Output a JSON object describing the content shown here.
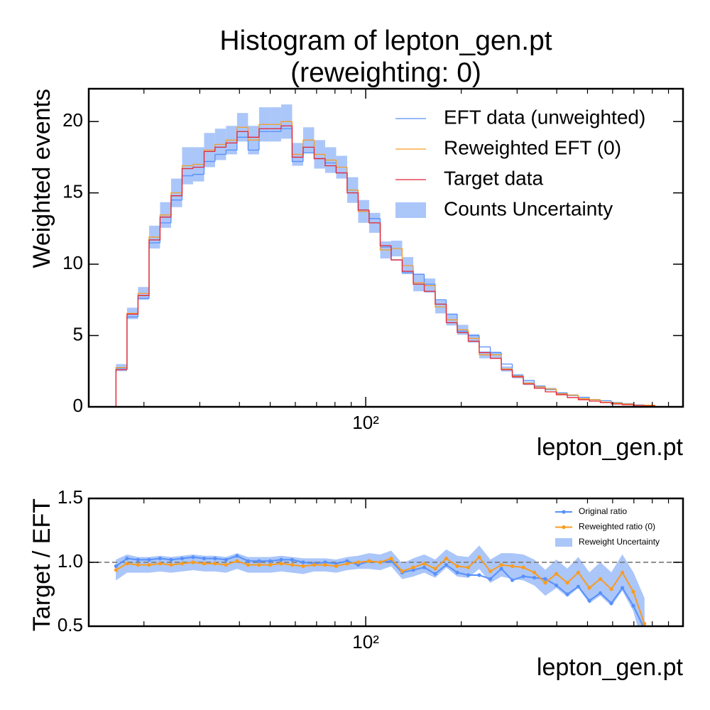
{
  "chart_data": [
    {
      "type": "histogram",
      "title": "Histogram of lepton_gen.pt\n(reweighting: 0)",
      "x_label": "lepton_gen.pt",
      "y_label": "Weighted events",
      "xscale": "log",
      "xlim": [
        13.4,
        1000
      ],
      "xticks": [
        {
          "value": 100,
          "label": "10²"
        }
      ],
      "xminorticks": [
        20,
        30,
        40,
        50,
        60,
        70,
        80,
        90,
        200,
        300,
        400,
        500,
        600,
        700,
        800,
        900
      ],
      "ylim": [
        0,
        22.3
      ],
      "yticks": [
        0,
        5,
        10,
        15,
        20
      ],
      "legend": "upper right",
      "bins": [
        16.33,
        17.69,
        19.16,
        20.76,
        22.48,
        24.35,
        26.38,
        28.57,
        30.95,
        33.5,
        36.29,
        39.31,
        42.58,
        46.13,
        49.96,
        54.12,
        58.62,
        63.5,
        68.78,
        74.5,
        80.68,
        87.4,
        94.67,
        102.5,
        111.1,
        120.3,
        130.3,
        141.2,
        152.9,
        165.6,
        179.4,
        194.3,
        210.4,
        227.9,
        247.0,
        267.5,
        289.7,
        313.8,
        339.9,
        368.1,
        398.7,
        431.9,
        467.7,
        506.7,
        548.8,
        594.5,
        643.9,
        697.4,
        755.4,
        818.3
      ],
      "series": [
        {
          "name": "EFT data (unweighted)",
          "color": "#5790fc",
          "values": [
            2.7,
            6.3,
            7.6,
            11.5,
            12.9,
            14.5,
            16.2,
            16.3,
            17.2,
            17.7,
            18.0,
            18.9,
            18.0,
            19.3,
            19.3,
            19.5,
            17.2,
            17.8,
            17.4,
            17.1,
            16.4,
            15.2,
            13.7,
            13.2,
            11.2,
            10.3,
            9.4,
            9.3,
            8.6,
            7.5,
            6.5,
            5.3,
            5.0,
            4.2,
            3.8,
            3.0,
            2.2,
            1.85,
            1.45,
            1.2,
            0.98,
            0.8,
            0.67,
            0.5,
            0.43,
            0.3,
            0.22,
            0.13,
            0.11
          ]
        },
        {
          "name": "Reweighted EFT (0)",
          "color": "#f89c20",
          "values": [
            2.75,
            6.55,
            7.95,
            11.9,
            13.45,
            15.0,
            16.9,
            17.0,
            18.0,
            18.4,
            18.7,
            19.6,
            18.7,
            19.8,
            19.8,
            20.0,
            17.7,
            18.7,
            17.7,
            17.3,
            16.8,
            15.2,
            13.7,
            12.9,
            11.0,
            11.1,
            9.9,
            8.7,
            8.5,
            7.0,
            6.1,
            5.4,
            4.8,
            3.65,
            3.65,
            2.65,
            2.15,
            1.65,
            1.4,
            1.25,
            0.92,
            0.82,
            0.57,
            0.5,
            0.33,
            0.26,
            0.2,
            0.11,
            0.12
          ]
        },
        {
          "name": "Target data",
          "color": "#e42536",
          "values": [
            2.6,
            6.5,
            7.8,
            11.7,
            13.3,
            14.8,
            16.7,
            16.8,
            17.9,
            18.2,
            18.5,
            19.3,
            18.9,
            19.5,
            19.5,
            19.7,
            17.5,
            18.2,
            17.4,
            16.9,
            16.4,
            15.0,
            13.8,
            12.9,
            11.3,
            10.3,
            9.5,
            8.6,
            8.1,
            7.2,
            5.9,
            5.2,
            4.6,
            3.8,
            3.4,
            2.6,
            2.1,
            1.6,
            1.3,
            1.05,
            0.85,
            0.65,
            0.5,
            0.4,
            0.3,
            0.2,
            0.15,
            0.1,
            0.07
          ]
        },
        {
          "name": "Counts Uncertainty",
          "color": "#abc6f9",
          "errors": [
            0.25,
            0.4,
            0.45,
            0.8,
            0.9,
            1.0,
            1.3,
            1.2,
            1.2,
            1.1,
            1.0,
            1.0,
            1.0,
            1.2,
            1.2,
            1.2,
            0.8,
            0.9,
            1.0,
            0.9,
            0.8,
            0.9,
            0.8,
            0.7,
            0.6,
            0.55,
            0.6,
            0.6,
            0.5,
            0.45,
            0.4,
            0.35,
            0.3,
            0.25,
            0.22,
            0.18,
            0.15,
            0.12,
            0.1,
            0.08,
            0.07,
            0.06,
            0.05,
            0.04,
            0.03,
            0.03,
            0.02,
            0.02,
            0.02
          ]
        }
      ]
    },
    {
      "type": "line",
      "x_label": "lepton_gen.pt",
      "y_label": "Target / EFT",
      "xscale": "log",
      "xlim": [
        13.4,
        1000
      ],
      "xticks": [
        {
          "value": 100,
          "label": "10²"
        }
      ],
      "xminorticks": [
        20,
        30,
        40,
        50,
        60,
        70,
        80,
        90,
        200,
        300,
        400,
        500,
        600,
        700,
        800,
        900
      ],
      "ylim": [
        0.5,
        1.5
      ],
      "yticks": [
        0.5,
        {
          "value": 1.0,
          "label": "1.0"
        },
        1.5
      ],
      "hline": 1,
      "legend": "upper right",
      "x": [
        16.33,
        17.69,
        19.16,
        20.76,
        22.48,
        24.35,
        26.38,
        28.57,
        30.95,
        33.5,
        36.29,
        39.31,
        42.58,
        46.13,
        49.96,
        54.12,
        58.62,
        63.5,
        68.78,
        74.5,
        80.68,
        87.4,
        94.67,
        102.5,
        111.1,
        120.3,
        130.3,
        141.2,
        152.9,
        165.6,
        179.4,
        194.3,
        210.4,
        227.9,
        247.0,
        267.5,
        289.7,
        313.8,
        339.9,
        368.1,
        398.7,
        431.9,
        467.7,
        506.7,
        548.8,
        594.5,
        643.9,
        697.4,
        755.4
      ],
      "series": [
        {
          "name": "Original ratio",
          "color": "#5790fc",
          "values": [
            0.97,
            1.03,
            1.02,
            1.02,
            1.03,
            1.02,
            1.03,
            1.04,
            1.03,
            1.03,
            1.02,
            1.05,
            1.01,
            1.01,
            1.01,
            1.02,
            1.02,
            1.0,
            0.99,
            1.0,
            0.99,
            1.01,
            0.98,
            1.01,
            1.0,
            1.01,
            0.92,
            0.94,
            0.96,
            0.91,
            0.98,
            0.92,
            0.9,
            0.9,
            0.87,
            0.95,
            0.86,
            0.89,
            0.88,
            0.87,
            0.82,
            0.75,
            0.81,
            0.7,
            0.76,
            0.68,
            0.8,
            0.66,
            0.48
          ]
        },
        {
          "name": "Reweighted ratio (0)",
          "color": "#f89c20",
          "values": [
            0.94,
            0.99,
            0.98,
            0.98,
            0.99,
            0.98,
            0.99,
            1.0,
            0.99,
            0.99,
            0.98,
            1.01,
            0.98,
            0.98,
            0.98,
            0.99,
            0.98,
            0.97,
            0.98,
            0.98,
            0.97,
            0.99,
            1.0,
            1.01,
            1.0,
            1.03,
            0.93,
            0.96,
            0.99,
            0.95,
            1.03,
            0.97,
            0.96,
            1.04,
            0.93,
            0.98,
            0.97,
            0.96,
            0.92,
            0.84,
            0.91,
            0.84,
            0.92,
            0.8,
            0.87,
            0.79,
            0.92,
            0.77,
            0.52
          ]
        },
        {
          "name": "Reweight Uncertainty",
          "color": "#abc6f9",
          "errors": [
            0.08,
            0.07,
            0.06,
            0.06,
            0.06,
            0.06,
            0.06,
            0.06,
            0.06,
            0.06,
            0.06,
            0.06,
            0.06,
            0.06,
            0.06,
            0.06,
            0.06,
            0.06,
            0.05,
            0.05,
            0.05,
            0.05,
            0.05,
            0.06,
            0.06,
            0.06,
            0.06,
            0.07,
            0.07,
            0.07,
            0.07,
            0.08,
            0.08,
            0.09,
            0.09,
            0.09,
            0.1,
            0.1,
            0.1,
            0.1,
            0.11,
            0.11,
            0.12,
            0.12,
            0.13,
            0.13,
            0.14,
            0.15,
            0.2
          ]
        }
      ]
    }
  ]
}
